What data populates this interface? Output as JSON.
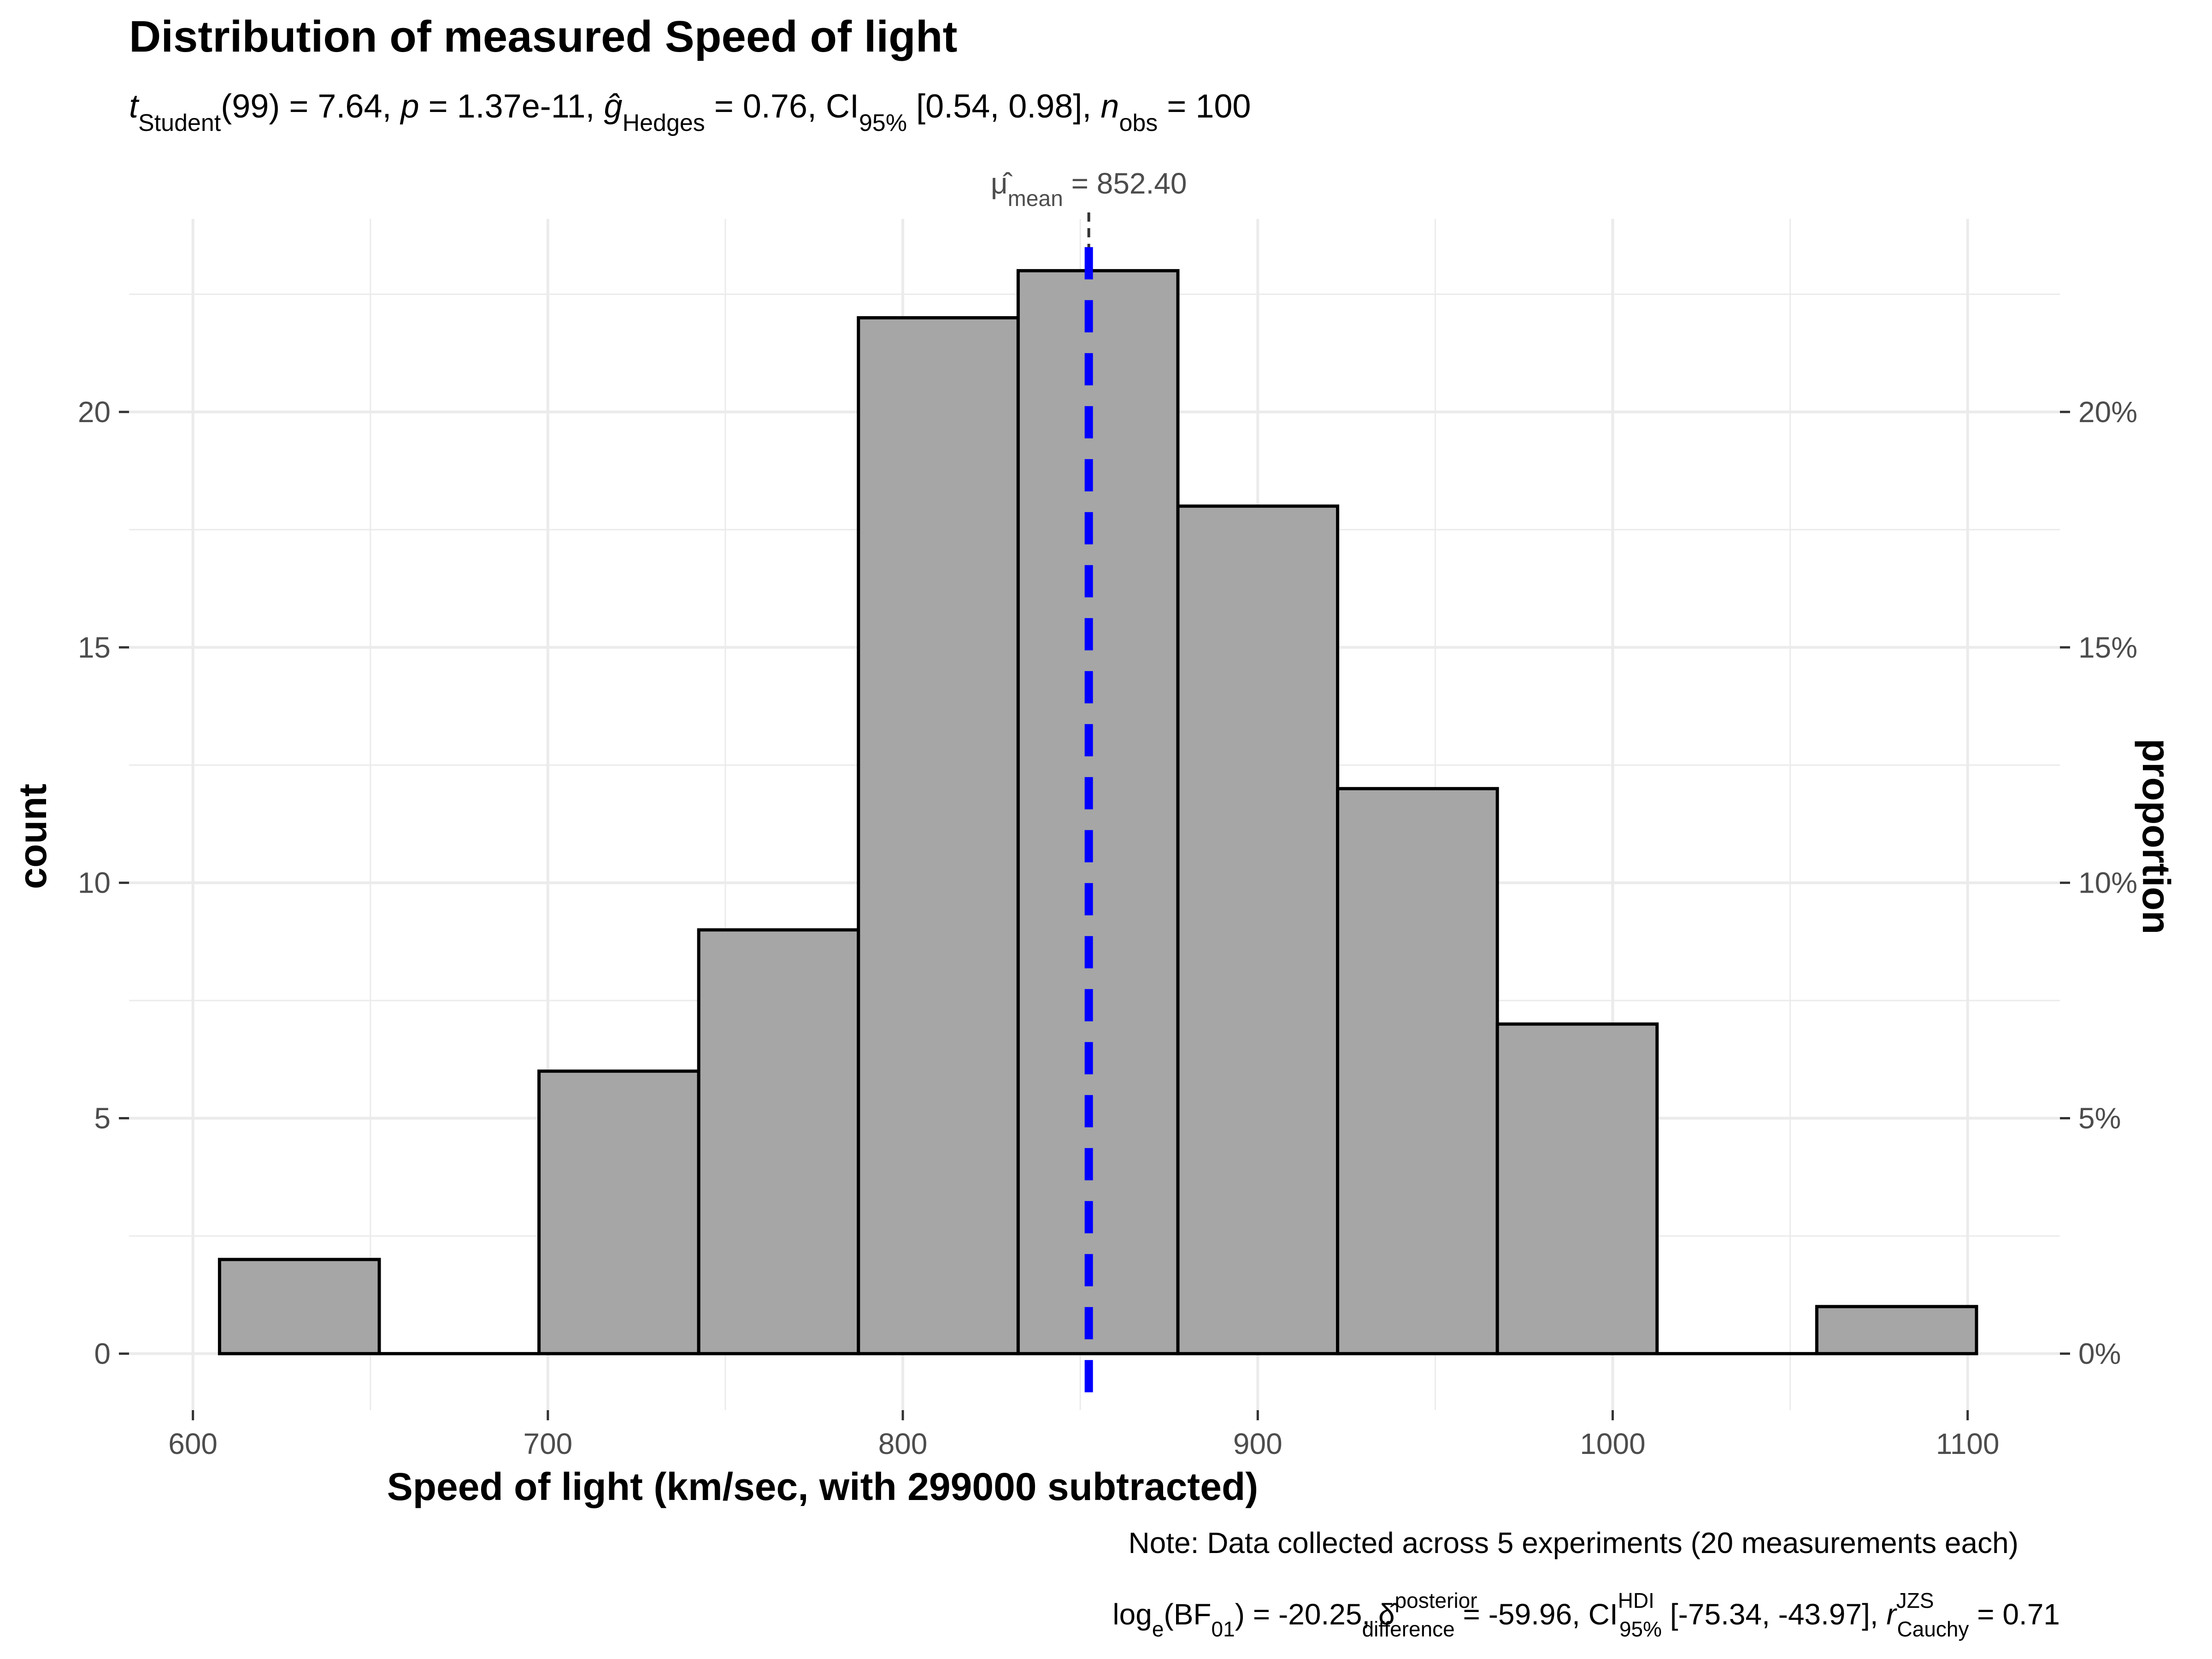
{
  "chart_data": {
    "type": "bar",
    "title": "Distribution of measured Speed of light",
    "subtitle": {
      "t_symbol": "t",
      "t_sub": "Student",
      "t_df": "(99) = 7.64, ",
      "p_symbol": "p",
      "p_value": " = 1.37e-11, ",
      "g_symbol": "ĝ",
      "g_sub": "Hedges",
      "g_value": " = 0.76, ",
      "ci_symbol": "CI",
      "ci_sub": "95%",
      "ci_value": " [0.54, 0.98], ",
      "n_symbol": "n",
      "n_sub": "obs",
      "n_value": " = 100"
    },
    "xlabel": "Speed of light (km/sec, with 299000 subtracted)",
    "ylabel": "count",
    "ylabel_right": "proportion",
    "xlim": [
      582,
      1126
    ],
    "ylim": [
      -1.2,
      24.1
    ],
    "x_ticks": [
      600,
      700,
      800,
      900,
      1000,
      1100
    ],
    "x_tick_labels": [
      "600",
      "700",
      "800",
      "900",
      "1000",
      "1100"
    ],
    "y_ticks": [
      0,
      5,
      10,
      15,
      20
    ],
    "y_tick_labels": [
      "0",
      "5",
      "10",
      "15",
      "20"
    ],
    "y_right_ticks": [
      0,
      5,
      10,
      15,
      20
    ],
    "y_right_tick_labels": [
      "0%",
      "5%",
      "10%",
      "15%",
      "20%"
    ],
    "bin_width": 45,
    "bins": [
      {
        "start": 607.5,
        "end": 652.5,
        "count": 2
      },
      {
        "start": 652.5,
        "end": 697.5,
        "count": 0
      },
      {
        "start": 697.5,
        "end": 742.5,
        "count": 6
      },
      {
        "start": 742.5,
        "end": 787.5,
        "count": 9
      },
      {
        "start": 787.5,
        "end": 832.5,
        "count": 22
      },
      {
        "start": 832.5,
        "end": 877.5,
        "count": 23
      },
      {
        "start": 877.5,
        "end": 922.5,
        "count": 18
      },
      {
        "start": 922.5,
        "end": 967.5,
        "count": 12
      },
      {
        "start": 967.5,
        "end": 1012.5,
        "count": 7
      },
      {
        "start": 1012.5,
        "end": 1057.5,
        "count": 0
      },
      {
        "start": 1057.5,
        "end": 1102.5,
        "count": 1
      }
    ],
    "mean": 852.4,
    "mean_label": {
      "symbol": "μ̂",
      "sub": "mean",
      "value": " = 852.40"
    },
    "colors": {
      "bar_fill": "#a6a6a6",
      "bar_stroke": "#000000",
      "mean_line": "#0000ff",
      "grid": "#ebebeb"
    },
    "grid": true,
    "caption_note": "Note: Data collected across 5 experiments (20 measurements each)",
    "caption_bayes": {
      "p1": "log",
      "p1_sub": "e",
      "p2": "(BF",
      "p2_sub": "01",
      "p3": ") = -20.25, ",
      "delta": "δ̂",
      "delta_sup": "posterior",
      "delta_sub": "difference",
      "p4": " = -59.96, ",
      "ci": "CI",
      "ci_sup": "HDI",
      "ci_sub": "95%",
      "p5": " [-75.34, -43.97], ",
      "r": "r",
      "r_sup": "JZS",
      "r_sub": "Cauchy",
      "p6": " = 0.71"
    }
  }
}
